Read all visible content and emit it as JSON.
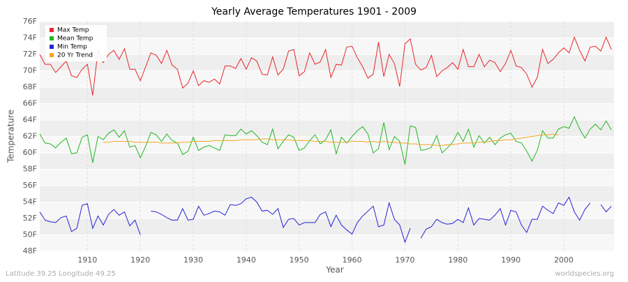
{
  "chart_data": {
    "type": "line",
    "title": "Yearly Average Temperatures 1901 - 2009",
    "x_label": "Year",
    "y_label": "Temperature",
    "footer_left": "Latitude 39.25 Longitude 49.25",
    "footer_right": "worldspecies.org",
    "xlim": [
      1901,
      2009.5
    ],
    "xticks": [
      1910,
      1920,
      1930,
      1940,
      1950,
      1960,
      1970,
      1980,
      1990,
      2000
    ],
    "ylim": [
      48,
      76
    ],
    "yticks": [
      {
        "value": 48,
        "label": "48F"
      },
      {
        "value": 50,
        "label": "50F"
      },
      {
        "value": 52,
        "label": "52F"
      },
      {
        "value": 54,
        "label": "54F"
      },
      {
        "value": 56,
        "label": "56F"
      },
      {
        "value": 58,
        "label": "58F"
      },
      {
        "value": 60,
        "label": "60F"
      },
      {
        "value": 62,
        "label": "62F"
      },
      {
        "value": 64,
        "label": "64F"
      },
      {
        "value": 66,
        "label": "66F"
      },
      {
        "value": 68,
        "label": "68F"
      },
      {
        "value": 70,
        "label": "70F"
      },
      {
        "value": 72,
        "label": "72F"
      },
      {
        "value": 74,
        "label": "74F"
      },
      {
        "value": 76,
        "label": "76F"
      }
    ],
    "grid": true,
    "legend": "top-left",
    "x": [
      1901,
      1902,
      1903,
      1904,
      1905,
      1906,
      1907,
      1908,
      1909,
      1910,
      1911,
      1912,
      1913,
      1914,
      1915,
      1916,
      1917,
      1918,
      1919,
      1920,
      1921,
      1922,
      1923,
      1924,
      1925,
      1926,
      1927,
      1928,
      1929,
      1930,
      1931,
      1932,
      1933,
      1934,
      1935,
      1936,
      1937,
      1938,
      1939,
      1940,
      1941,
      1942,
      1943,
      1944,
      1945,
      1946,
      1947,
      1948,
      1949,
      1950,
      1951,
      1952,
      1953,
      1954,
      1955,
      1956,
      1957,
      1958,
      1959,
      1960,
      1961,
      1962,
      1963,
      1964,
      1965,
      1966,
      1967,
      1968,
      1969,
      1970,
      1971,
      1972,
      1973,
      1974,
      1975,
      1976,
      1977,
      1978,
      1979,
      1980,
      1981,
      1982,
      1983,
      1984,
      1985,
      1986,
      1987,
      1988,
      1989,
      1990,
      1991,
      1992,
      1993,
      1994,
      1995,
      1996,
      1997,
      1998,
      1999,
      2000,
      2001,
      2002,
      2003,
      2004,
      2005,
      2006,
      2007,
      2008,
      2009
    ],
    "series": [
      {
        "name": "Max Temp",
        "color": "#e8262a",
        "values": [
          72.0,
          70.8,
          70.8,
          69.8,
          70.5,
          71.2,
          69.4,
          69.2,
          70.2,
          70.8,
          67.0,
          72.5,
          71.0,
          72.0,
          72.5,
          71.4,
          72.7,
          70.2,
          70.2,
          68.8,
          70.5,
          72.2,
          71.9,
          70.9,
          72.5,
          70.7,
          70.2,
          67.9,
          68.5,
          70.0,
          68.2,
          68.8,
          68.6,
          69.0,
          68.4,
          70.6,
          70.6,
          70.3,
          71.5,
          70.2,
          71.6,
          71.2,
          69.6,
          69.5,
          71.7,
          69.5,
          70.2,
          72.4,
          72.6,
          69.4,
          69.9,
          72.2,
          70.8,
          71.1,
          72.6,
          69.2,
          70.8,
          70.7,
          72.9,
          73.0,
          71.6,
          70.5,
          69.1,
          69.6,
          73.5,
          69.3,
          72.0,
          70.9,
          68.1,
          73.3,
          73.9,
          70.8,
          70.1,
          70.4,
          71.9,
          69.3,
          70.0,
          70.4,
          71.0,
          70.2,
          72.6,
          70.5,
          70.5,
          72.0,
          70.5,
          71.3,
          71.0,
          69.9,
          70.9,
          72.5,
          70.6,
          70.4,
          69.6,
          68.0,
          69.2,
          72.6,
          70.9,
          71.4,
          72.2,
          72.8,
          72.2,
          74.1,
          72.5,
          71.2,
          72.9,
          73.0,
          72.4,
          74.1,
          72.6
        ]
      },
      {
        "name": "Mean Temp",
        "color": "#1fb81f",
        "values": [
          62.3,
          61.2,
          61.1,
          60.6,
          61.3,
          61.8,
          59.9,
          60.0,
          61.9,
          62.2,
          58.8,
          62.0,
          61.6,
          62.4,
          62.8,
          61.9,
          62.7,
          60.7,
          60.9,
          59.4,
          60.8,
          62.5,
          62.2,
          61.4,
          62.3,
          61.5,
          61.2,
          59.8,
          60.2,
          61.9,
          60.3,
          60.7,
          60.9,
          60.6,
          60.3,
          62.2,
          62.1,
          62.1,
          62.9,
          62.3,
          62.7,
          62.1,
          61.3,
          61.0,
          62.9,
          60.5,
          61.4,
          62.2,
          61.9,
          60.3,
          60.6,
          61.5,
          62.2,
          61.1,
          61.6,
          62.8,
          59.9,
          61.9,
          61.2,
          62.0,
          62.7,
          63.2,
          62.3,
          60.0,
          60.5,
          63.7,
          60.4,
          62.0,
          61.4,
          58.6,
          63.3,
          63.1,
          60.3,
          60.4,
          60.7,
          62.1,
          60.0,
          60.6,
          61.3,
          62.5,
          61.4,
          62.9,
          60.7,
          62.1,
          61.2,
          61.9,
          61.0,
          61.8,
          62.2,
          62.4,
          61.4,
          61.2,
          60.2,
          59.0,
          60.3,
          62.7,
          61.8,
          61.8,
          62.9,
          63.2,
          63.0,
          64.4,
          62.9,
          61.8,
          62.9,
          63.5,
          62.8,
          63.9,
          62.8
        ]
      },
      {
        "name": "Min Temp",
        "color": "#2323d6",
        "values": [
          52.8,
          51.8,
          51.6,
          51.5,
          52.1,
          52.3,
          50.4,
          50.8,
          53.6,
          53.8,
          50.8,
          52.3,
          51.2,
          52.5,
          53.1,
          52.4,
          52.8,
          51.1,
          51.8,
          50.0,
          null,
          52.9,
          52.8,
          52.5,
          52.1,
          51.8,
          51.8,
          53.2,
          51.8,
          51.9,
          53.5,
          52.4,
          52.6,
          52.9,
          52.8,
          52.4,
          53.7,
          53.6,
          53.8,
          54.4,
          54.6,
          54.0,
          52.9,
          53.0,
          52.5,
          53.2,
          50.9,
          51.9,
          52.0,
          51.2,
          51.5,
          51.5,
          51.5,
          52.5,
          52.8,
          51.0,
          52.4,
          51.2,
          50.6,
          50.1,
          51.5,
          52.3,
          52.9,
          53.5,
          51.0,
          51.2,
          53.9,
          51.9,
          51.2,
          49.1,
          50.8,
          null,
          49.6,
          50.7,
          51.0,
          51.9,
          51.5,
          51.3,
          51.4,
          51.9,
          51.5,
          53.3,
          51.2,
          52.0,
          51.9,
          51.8,
          52.4,
          53.2,
          51.2,
          53.0,
          52.8,
          51.2,
          50.3,
          51.9,
          51.9,
          53.5,
          53.0,
          52.6,
          53.9,
          53.6,
          54.6,
          52.8,
          51.8,
          53.1,
          53.9,
          null,
          53.7,
          52.8,
          53.5
        ]
      },
      {
        "name": "20 Yr Trend",
        "color": "#f5a623",
        "values": [
          null,
          null,
          null,
          null,
          null,
          null,
          null,
          null,
          null,
          null,
          null,
          null,
          61.3,
          61.3,
          61.4,
          61.4,
          61.4,
          61.4,
          61.3,
          61.3,
          61.3,
          61.3,
          61.3,
          61.2,
          61.2,
          61.2,
          61.2,
          61.3,
          61.3,
          61.4,
          61.4,
          61.4,
          61.4,
          61.5,
          61.5,
          61.5,
          61.5,
          61.5,
          61.6,
          61.6,
          61.6,
          61.6,
          61.7,
          61.7,
          61.6,
          61.6,
          61.6,
          61.6,
          61.5,
          61.5,
          61.5,
          61.5,
          61.4,
          61.4,
          61.4,
          61.3,
          61.3,
          61.3,
          61.3,
          61.4,
          61.4,
          61.4,
          61.3,
          61.4,
          61.3,
          61.4,
          61.3,
          61.3,
          61.2,
          61.2,
          61.1,
          61.1,
          61.0,
          61.0,
          61.0,
          60.9,
          60.9,
          61.0,
          61.0,
          61.1,
          61.2,
          61.2,
          61.2,
          61.3,
          61.3,
          61.4,
          61.5,
          61.5,
          61.6,
          61.6,
          61.7,
          61.8,
          61.9,
          62.0,
          62.1,
          62.2,
          62.2,
          62.3,
          62.2,
          null,
          null,
          null,
          null,
          null,
          null,
          null,
          null,
          null,
          null
        ]
      }
    ]
  }
}
